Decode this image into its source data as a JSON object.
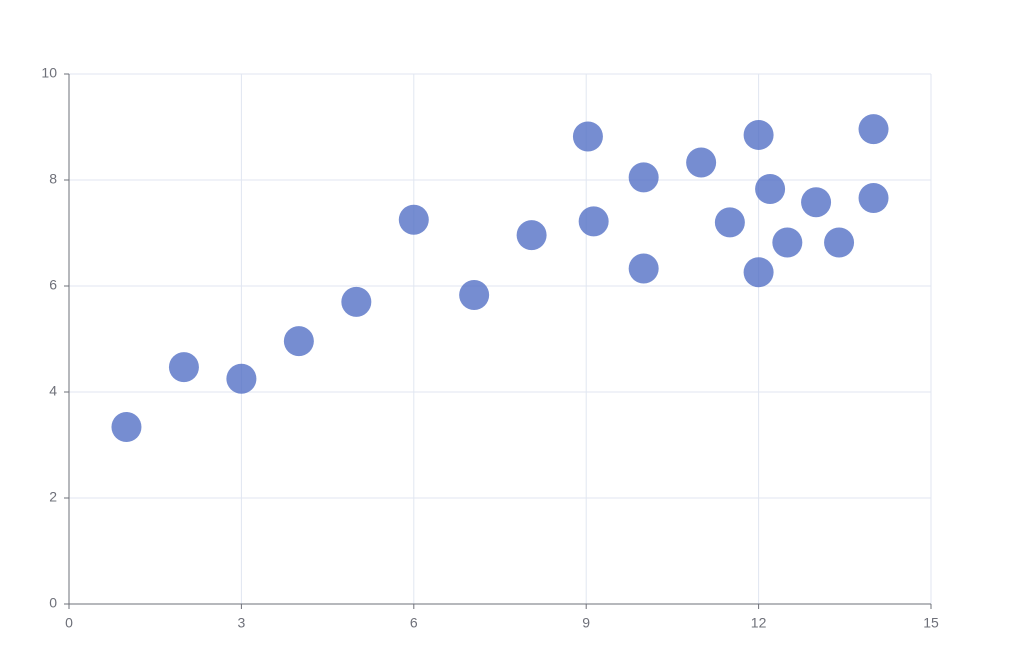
{
  "chart_data": {
    "type": "scatter",
    "color": "#5470c6",
    "x": [
      1.0,
      2.0,
      3.0,
      4.0,
      5.0,
      6.0,
      7.05,
      8.05,
      9.03,
      9.13,
      10.0,
      10.0,
      11.0,
      11.5,
      12.0,
      12.0,
      12.2,
      12.5,
      13.0,
      13.4,
      14.0,
      14.0
    ],
    "values": [
      3.34,
      4.47,
      4.25,
      4.96,
      5.7,
      7.25,
      5.83,
      6.96,
      8.82,
      7.22,
      8.05,
      6.33,
      8.33,
      7.2,
      8.85,
      6.26,
      7.83,
      6.82,
      7.58,
      6.82,
      8.96,
      7.66
    ],
    "xlim": [
      0,
      15
    ],
    "xticks": [
      0,
      3,
      6,
      9,
      12,
      15
    ],
    "ylim": [
      0,
      10
    ],
    "yticks": [
      0,
      2,
      4,
      6,
      8,
      10
    ],
    "grid": true
  }
}
